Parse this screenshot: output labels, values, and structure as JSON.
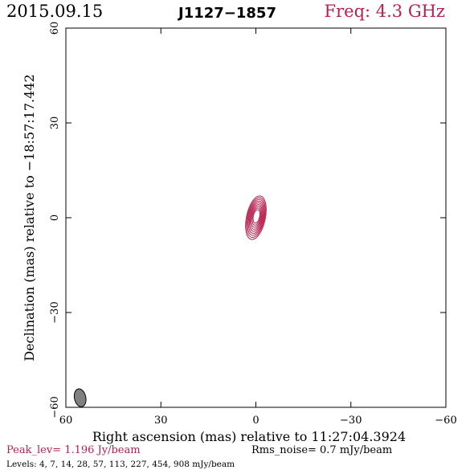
{
  "header": {
    "date": "2015.09.15",
    "source": "J1127−1857",
    "freq": "Freq: 4.3 GHz"
  },
  "colors": {
    "accent": "#b5224f",
    "beam": "#808080",
    "axes": "#000000"
  },
  "chart_data": {
    "type": "contour",
    "x": {
      "label": "Right ascension (mas) relative to 11:27:04.3924",
      "lim": [
        60,
        -60
      ],
      "ticks": [
        60,
        30,
        0,
        -30,
        -60
      ],
      "tick_labels": [
        "60",
        "30",
        "0",
        "−30",
        "−60"
      ]
    },
    "y": {
      "label": "Declination (mas) relative to −18:57:17.442",
      "lim": [
        -60,
        60
      ],
      "ticks": [
        -60,
        -30,
        0,
        30,
        60
      ],
      "tick_labels": [
        "−60",
        "−30",
        "0",
        "30",
        "60"
      ]
    },
    "source_component": {
      "center": [
        0,
        0
      ],
      "peak_offset": [
        0,
        0.5
      ],
      "levels_drawn": 9,
      "color": "#b5224f"
    },
    "beam": {
      "center": [
        55.5,
        -57
      ],
      "major_mas": 4.2,
      "minor_mas": 1.8,
      "pa_deg": -12
    },
    "peak_lev": "Peak_lev=  1.196 Jy/beam",
    "rms_noise": "Rms_noise=  0.7 mJy/beam",
    "levels": "Levels:   4,   7,  14,  28,  57, 113, 227, 454, 908 mJy/beam"
  }
}
